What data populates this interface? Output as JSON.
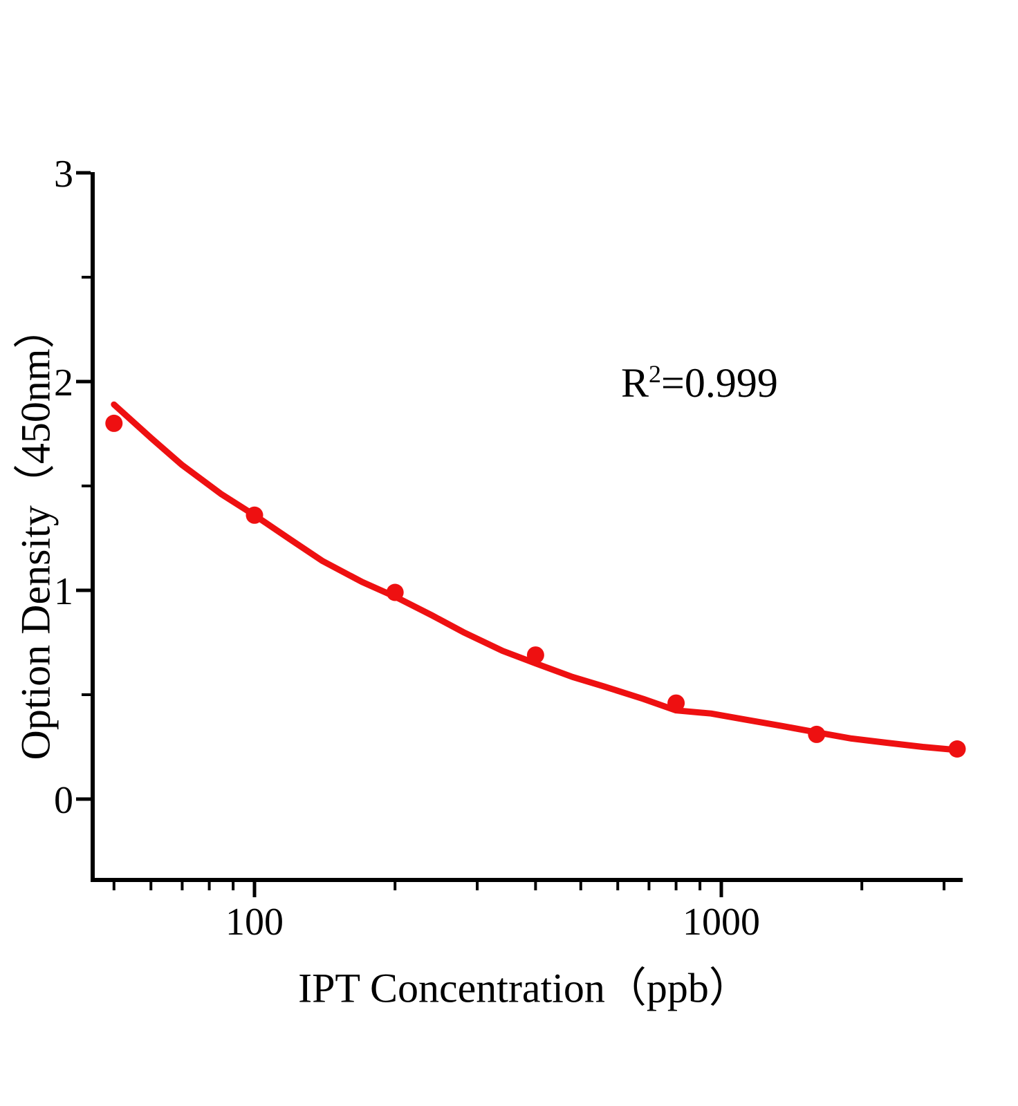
{
  "figure": {
    "background": "#ffffff",
    "annotation": {
      "base": "R",
      "exponent": "2",
      "value": "=0.999"
    }
  },
  "chart_data": {
    "type": "scatter",
    "title": "",
    "xlabel": "IPT Concentration（ppb）",
    "ylabel": "Option Density（450nm）",
    "x_scale": "log",
    "xlim": [
      45,
      3290
    ],
    "ylim": [
      -0.39,
      3.0
    ],
    "grid": false,
    "legend": "none",
    "annotation": "R²=0.999",
    "colors": {
      "data": "#ee1011",
      "axis": "#000000",
      "background": "#ffffff"
    },
    "series": [
      {
        "name": "standard-points",
        "type": "scatter",
        "marker": "circle",
        "color": "#ee1011",
        "x": [
          50,
          100,
          200,
          400,
          800,
          1600,
          3200
        ],
        "y": [
          1.8,
          1.36,
          0.99,
          0.69,
          0.46,
          0.31,
          0.24
        ]
      },
      {
        "name": "fit-curve",
        "type": "line",
        "color": "#ee1011",
        "x": [
          50,
          60,
          70,
          85,
          100,
          120,
          140,
          170,
          200,
          240,
          280,
          340,
          400,
          480,
          560,
          680,
          800,
          950,
          1130,
          1350,
          1600,
          1900,
          2260,
          2700,
          3200
        ],
        "y": [
          1.89,
          1.73,
          1.6,
          1.46,
          1.36,
          1.24,
          1.14,
          1.04,
          0.97,
          0.88,
          0.8,
          0.71,
          0.65,
          0.585,
          0.54,
          0.48,
          0.425,
          0.41,
          0.38,
          0.35,
          0.32,
          0.29,
          0.27,
          0.25,
          0.235
        ]
      }
    ],
    "x_ticks": {
      "major": [
        {
          "value": 100,
          "label": "100"
        },
        {
          "value": 1000,
          "label": "1000"
        }
      ],
      "minor": [
        50,
        60,
        70,
        80,
        90,
        200,
        300,
        400,
        500,
        600,
        700,
        800,
        900,
        2000,
        3000
      ]
    },
    "y_ticks": {
      "major": [
        {
          "value": 0,
          "label": "0"
        },
        {
          "value": 1,
          "label": "1"
        },
        {
          "value": 2,
          "label": "2"
        },
        {
          "value": 3,
          "label": "3"
        }
      ],
      "minor": [
        0.5,
        1.5,
        2.5
      ]
    }
  }
}
